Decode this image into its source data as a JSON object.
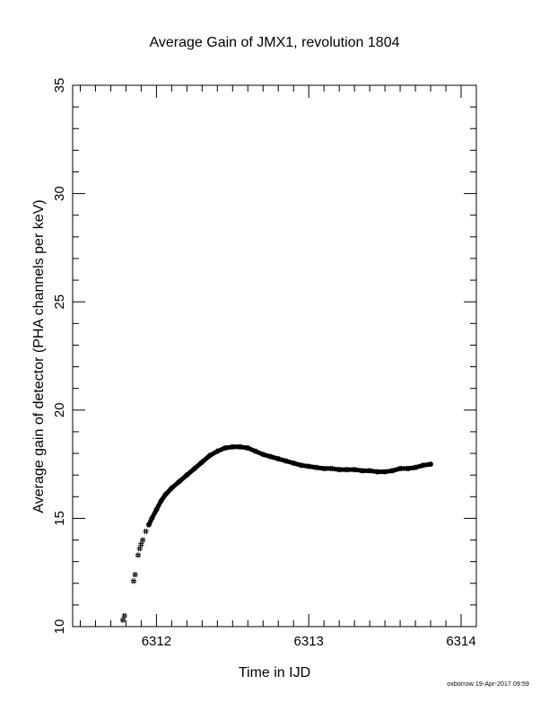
{
  "footer_stamp": "oxborrow 19-Apr-2017 09:59",
  "chart_data": {
    "type": "scatter",
    "title": "Average Gain of JMX1, revolution 1804",
    "xlabel": "Time in IJD",
    "ylabel": "Average gain of detector (PHA channels per keV)",
    "xlim": [
      6311.45,
      6314.1
    ],
    "ylim": [
      10,
      35
    ],
    "xticks": [
      6312,
      6313,
      6314
    ],
    "xtick_labels": [
      "6312",
      "6313",
      "6314"
    ],
    "xminor_step": 0.1,
    "yticks": [
      10,
      15,
      20,
      25,
      30,
      35
    ],
    "ytick_labels": [
      "10",
      "15",
      "20",
      "25",
      "30",
      "35"
    ],
    "yminor_step": 1,
    "grid": false,
    "marker": "+",
    "color": "#000000",
    "series": [
      {
        "x": [
          6311.78,
          6311.79,
          6311.85,
          6311.86,
          6311.88,
          6311.89,
          6311.9,
          6311.91,
          6311.93,
          6311.95,
          6311.97,
          6312.0,
          6312.03,
          6312.06,
          6312.1,
          6312.15,
          6312.2,
          6312.25,
          6312.3,
          6312.35,
          6312.4,
          6312.45,
          6312.5,
          6312.55,
          6312.6,
          6312.65,
          6312.7,
          6312.75,
          6312.8,
          6312.85,
          6312.9,
          6312.95,
          6313.0,
          6313.05,
          6313.1,
          6313.15,
          6313.2,
          6313.25,
          6313.3,
          6313.35,
          6313.4,
          6313.45,
          6313.5,
          6313.55,
          6313.6,
          6313.65,
          6313.7,
          6313.75,
          6313.8
        ],
        "y": [
          10.3,
          10.5,
          12.1,
          12.4,
          13.3,
          13.6,
          13.8,
          14.0,
          14.4,
          14.7,
          15.0,
          15.4,
          15.8,
          16.1,
          16.4,
          16.7,
          17.0,
          17.3,
          17.6,
          17.9,
          18.1,
          18.25,
          18.3,
          18.3,
          18.25,
          18.1,
          17.95,
          17.85,
          17.75,
          17.65,
          17.55,
          17.45,
          17.4,
          17.35,
          17.3,
          17.3,
          17.25,
          17.25,
          17.25,
          17.2,
          17.2,
          17.15,
          17.15,
          17.2,
          17.3,
          17.3,
          17.35,
          17.45,
          17.5
        ]
      }
    ]
  }
}
